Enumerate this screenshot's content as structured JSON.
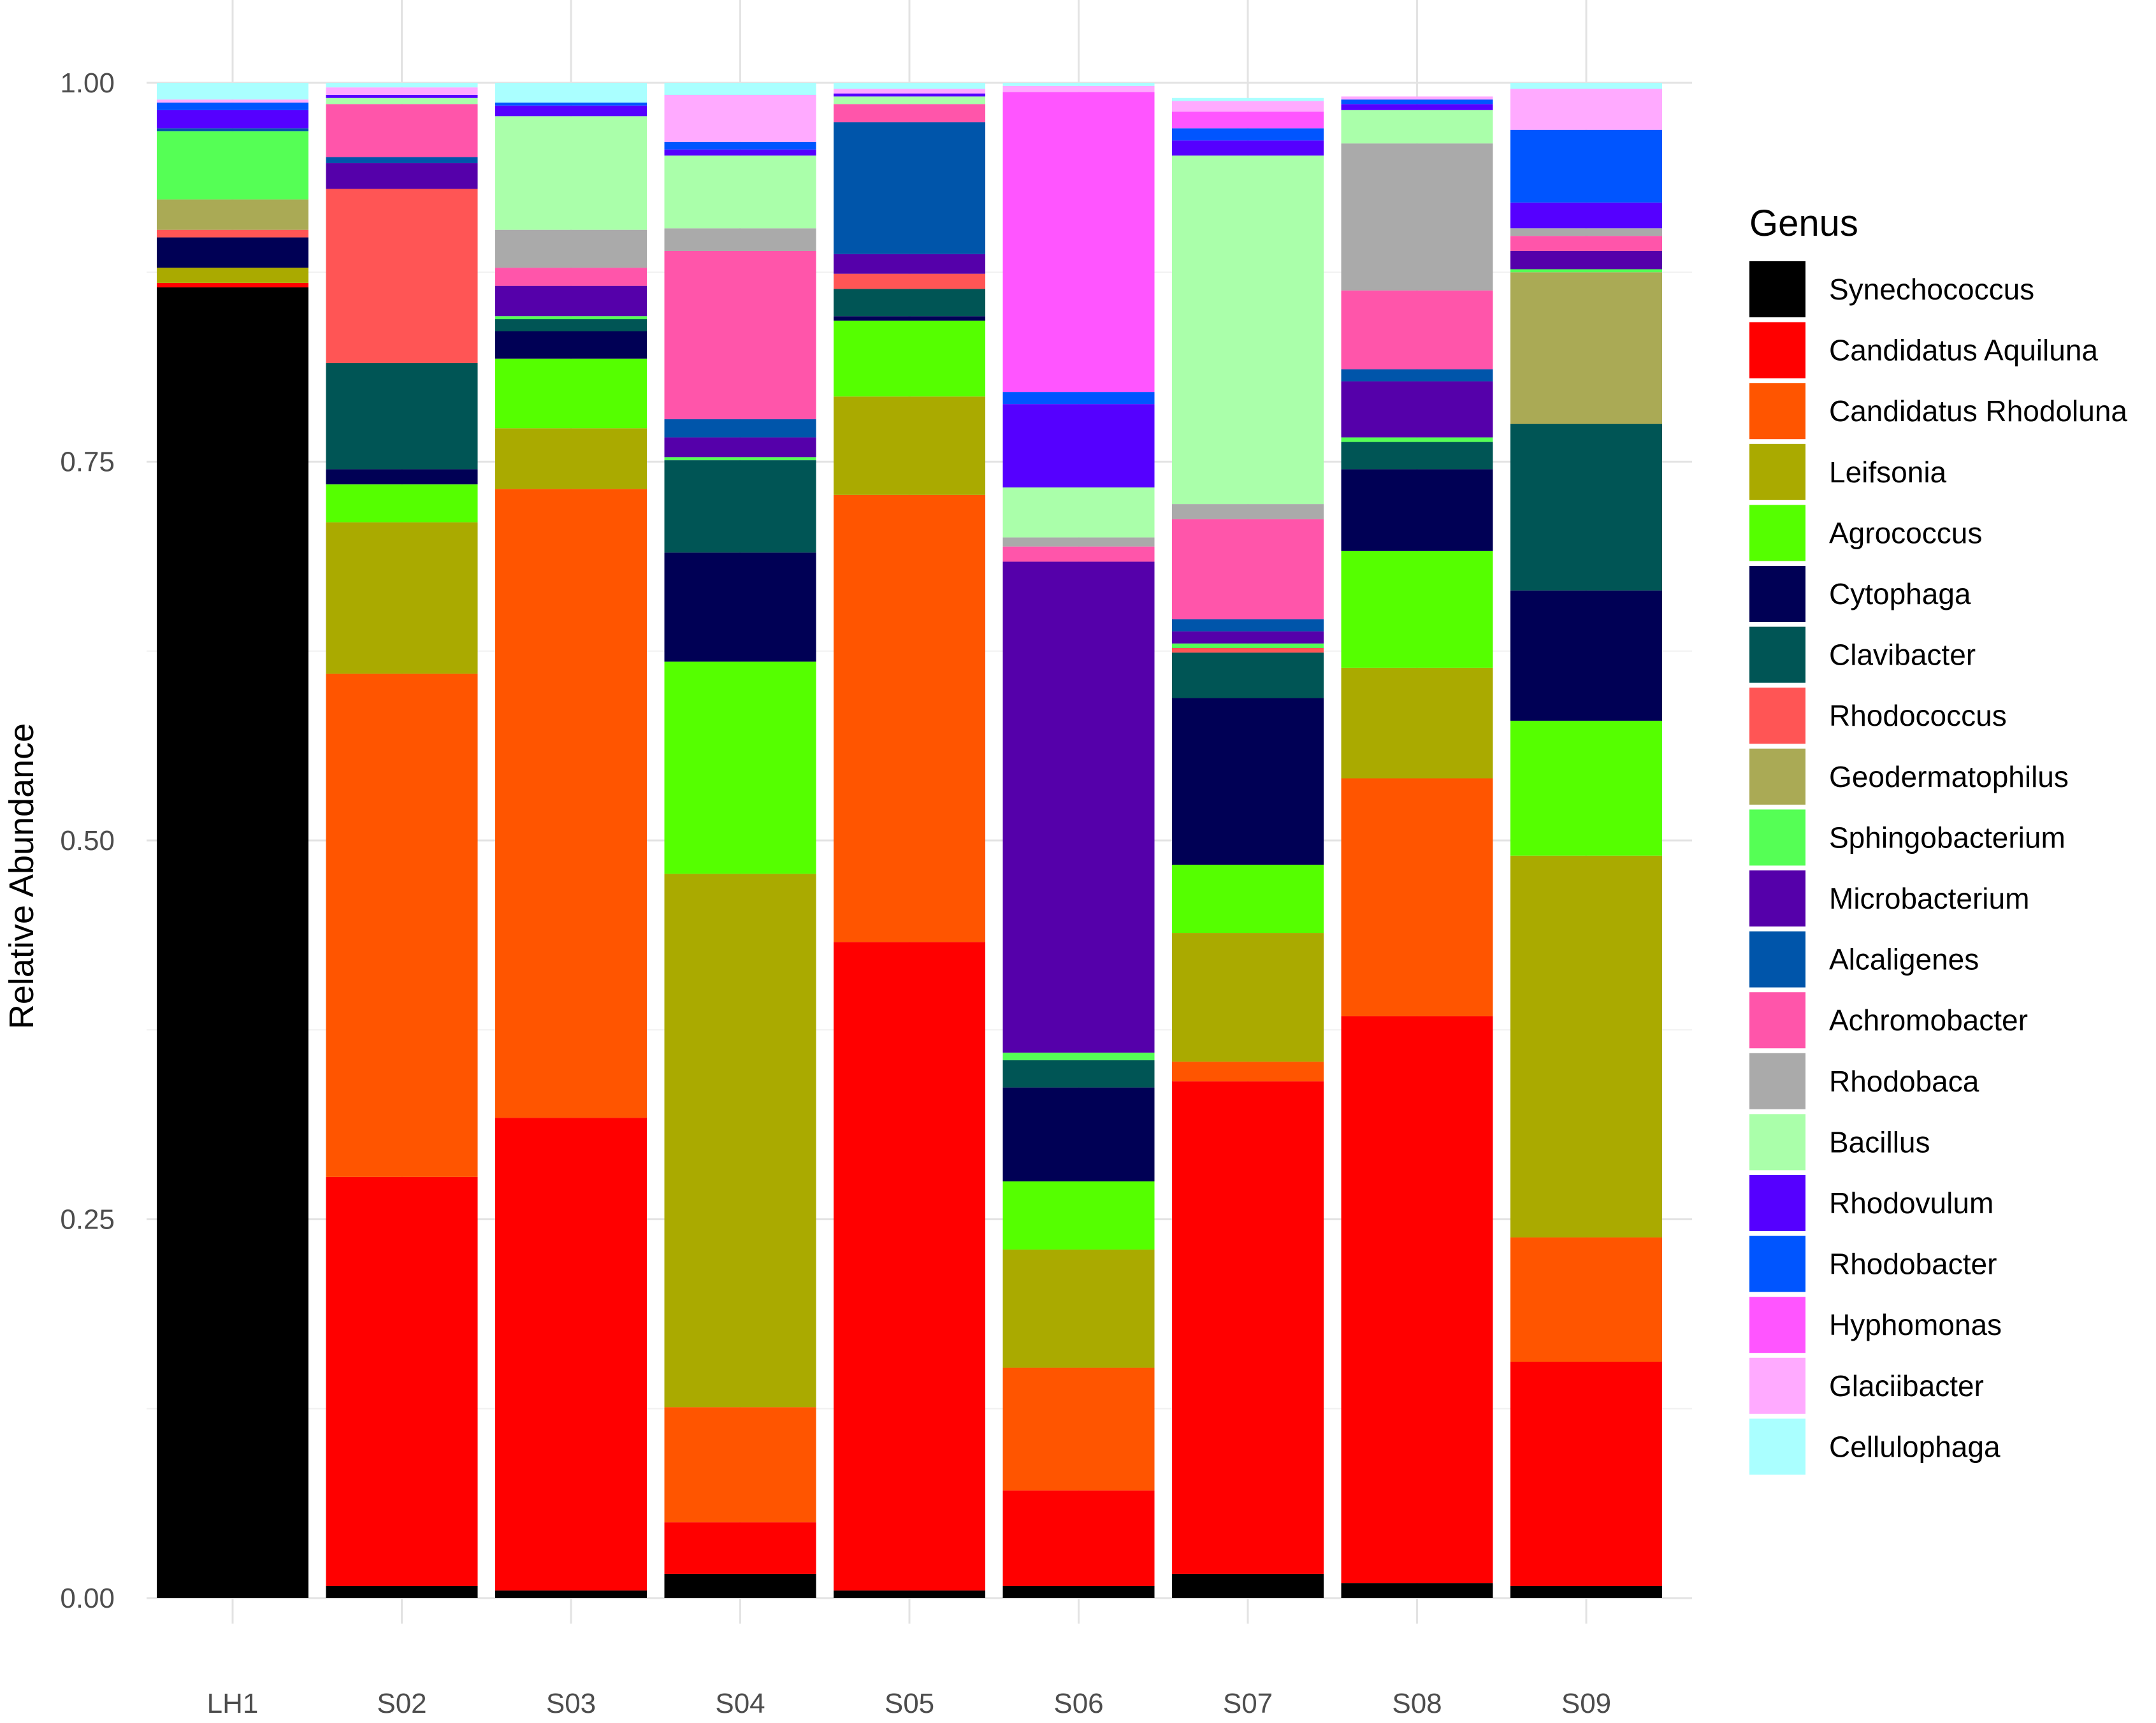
{
  "chart_data": {
    "type": "bar",
    "stacked": true,
    "title": "",
    "xlabel": "",
    "ylabel": "Relative Abundance",
    "ylim": [
      0,
      1
    ],
    "yticks": [
      0.0,
      0.25,
      0.5,
      0.75,
      1.0
    ],
    "ytick_labels": [
      "0.00",
      "0.25",
      "0.50",
      "0.75",
      "1.00"
    ],
    "grid": true,
    "legend_position": "right",
    "legend_title": "Genus",
    "categories": [
      "LH1",
      "S02",
      "S03",
      "S04",
      "S05",
      "S06",
      "S07",
      "S08",
      "S09"
    ],
    "series": [
      {
        "name": "Synechococcus",
        "color": "#000000",
        "values": [
          0.865,
          0.008,
          0.005,
          0.016,
          0.005,
          0.008,
          0.016,
          0.01,
          0.008
        ]
      },
      {
        "name": "Candidatus Aquiluna",
        "color": "#FF0000",
        "values": [
          0.003,
          0.27,
          0.312,
          0.034,
          0.428,
          0.063,
          0.325,
          0.374,
          0.148
        ]
      },
      {
        "name": "Candidatus Rhodoluna",
        "color": "#FF5500",
        "values": [
          0.0,
          0.332,
          0.415,
          0.076,
          0.295,
          0.081,
          0.013,
          0.157,
          0.082
        ]
      },
      {
        "name": "Leifsonia",
        "color": "#AAAA00",
        "values": [
          0.01,
          0.1,
          0.04,
          0.352,
          0.065,
          0.078,
          0.085,
          0.073,
          0.252
        ]
      },
      {
        "name": "Agrococcus",
        "color": "#55FF00",
        "values": [
          0.0,
          0.025,
          0.046,
          0.14,
          0.05,
          0.045,
          0.045,
          0.077,
          0.089
        ]
      },
      {
        "name": "Cytophaga",
        "color": "#000055",
        "values": [
          0.02,
          0.01,
          0.018,
          0.072,
          0.003,
          0.062,
          0.11,
          0.054,
          0.086
        ]
      },
      {
        "name": "Clavibacter",
        "color": "#005555",
        "values": [
          0.0,
          0.07,
          0.008,
          0.061,
          0.018,
          0.018,
          0.03,
          0.018,
          0.11
        ]
      },
      {
        "name": "Rhodococcus",
        "color": "#FF5555",
        "values": [
          0.005,
          0.115,
          0.0,
          0.0,
          0.01,
          0.0,
          0.003,
          0.0,
          0.0
        ]
      },
      {
        "name": "Geodermatophilus",
        "color": "#AAAA55",
        "values": [
          0.02,
          0.0,
          0.0,
          0.0,
          0.0,
          0.0,
          0.0,
          0.0,
          0.1
        ]
      },
      {
        "name": "Sphingobacterium",
        "color": "#55FF55",
        "values": [
          0.045,
          0.0,
          0.002,
          0.002,
          0.0,
          0.005,
          0.003,
          0.003,
          0.002
        ]
      },
      {
        "name": "Microbacterium",
        "color": "#5500AA",
        "values": [
          0.0,
          0.017,
          0.02,
          0.013,
          0.013,
          0.324,
          0.008,
          0.037,
          0.012
        ]
      },
      {
        "name": "Alcaligenes",
        "color": "#0055AA",
        "values": [
          0.002,
          0.004,
          0.0,
          0.012,
          0.087,
          0.0,
          0.008,
          0.008,
          0.0
        ]
      },
      {
        "name": "Achromobacter",
        "color": "#FF55AA",
        "values": [
          0.0,
          0.035,
          0.012,
          0.111,
          0.012,
          0.01,
          0.066,
          0.052,
          0.01
        ]
      },
      {
        "name": "Rhodobaca",
        "color": "#AAAAAA",
        "values": [
          0.0,
          0.0,
          0.025,
          0.015,
          0.0,
          0.006,
          0.01,
          0.097,
          0.005
        ]
      },
      {
        "name": "Bacillus",
        "color": "#AAFFAA",
        "values": [
          0.0,
          0.004,
          0.075,
          0.048,
          0.005,
          0.033,
          0.23,
          0.022,
          0.0
        ]
      },
      {
        "name": "Rhodovulum",
        "color": "#5500FF",
        "values": [
          0.012,
          0.002,
          0.007,
          0.004,
          0.002,
          0.055,
          0.01,
          0.004,
          0.017
        ]
      },
      {
        "name": "Rhodobacter",
        "color": "#0055FF",
        "values": [
          0.005,
          0.0,
          0.002,
          0.005,
          0.0,
          0.008,
          0.008,
          0.003,
          0.048
        ]
      },
      {
        "name": "Hyphomonas",
        "color": "#FF55FF",
        "values": [
          0.0,
          0.0,
          0.0,
          0.0,
          0.0,
          0.198,
          0.011,
          0.0,
          0.0
        ]
      },
      {
        "name": "Glaciibacter",
        "color": "#FFAAFF",
        "values": [
          0.002,
          0.005,
          0.0,
          0.031,
          0.003,
          0.004,
          0.007,
          0.002,
          0.027
        ]
      },
      {
        "name": "Cellulophaga",
        "color": "#AAFFFF",
        "values": [
          0.011,
          0.003,
          0.013,
          0.008,
          0.004,
          0.002,
          0.002,
          0.0,
          0.004
        ]
      }
    ]
  }
}
